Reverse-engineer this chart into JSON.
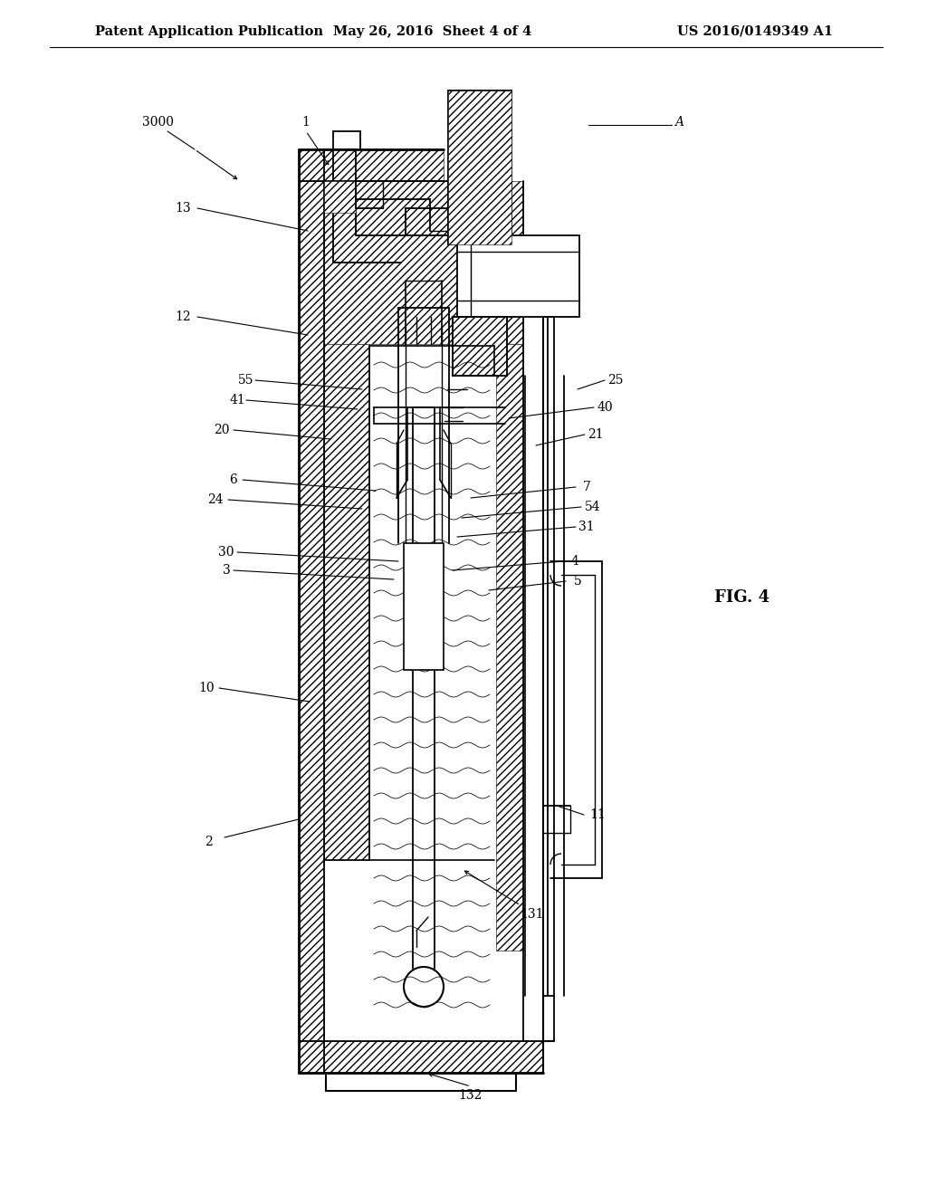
{
  "bg_color": "#ffffff",
  "header_left": "Patent Application Publication",
  "header_mid": "May 26, 2016  Sheet 4 of 4",
  "header_right": "US 2016/0149349 A1",
  "fig_label": "FIG. 4",
  "font_size_header": 10.5,
  "font_size_label": 10,
  "font_size_fig": 13
}
